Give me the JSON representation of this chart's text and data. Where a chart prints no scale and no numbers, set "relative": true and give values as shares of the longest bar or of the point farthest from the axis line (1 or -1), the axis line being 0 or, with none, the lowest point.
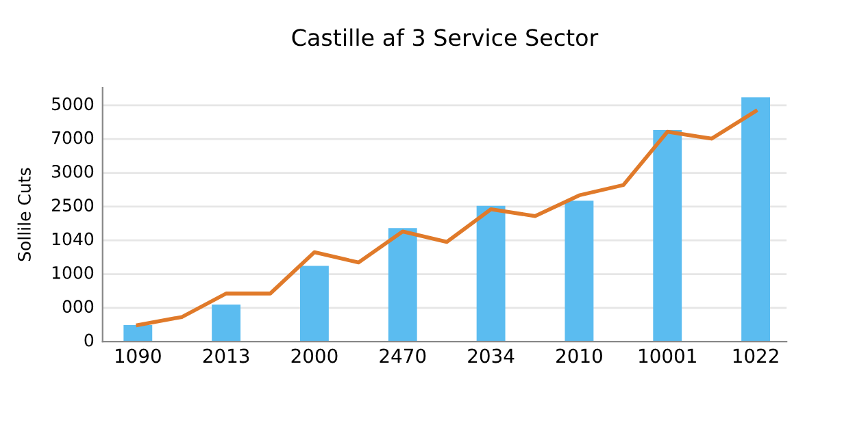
{
  "chart_data": {
    "type": "bar",
    "title": "Castille af 3 Service Sector",
    "ylabel": "Sollile Cuts",
    "relative": true,
    "categories": [
      "1090",
      null,
      "2013",
      null,
      "2000",
      null,
      "2470",
      null,
      "2034",
      null,
      "2010",
      null,
      "10001",
      null,
      "1022"
    ],
    "series": [
      {
        "color": "#5bbcf0",
        "values": [
          0.068,
          null,
          0.152,
          null,
          0.31,
          null,
          0.465,
          null,
          0.556,
          null,
          0.577,
          null,
          0.866,
          null,
          1
        ]
      },
      {
        "type": "line",
        "color": "#e07a2a",
        "values": [
          0.068,
          0.101,
          0.197,
          0.197,
          0.366,
          0.324,
          0.451,
          0.408,
          0.542,
          0.514,
          0.599,
          0.641,
          0.859,
          0.831,
          0.944
        ]
      }
    ],
    "annotations": [
      "0",
      "000",
      "1000",
      "1040",
      "2500",
      "3000",
      "7000",
      "5000"
    ],
    "grid": "y",
    "marker": "none",
    "line_style": "solid"
  }
}
